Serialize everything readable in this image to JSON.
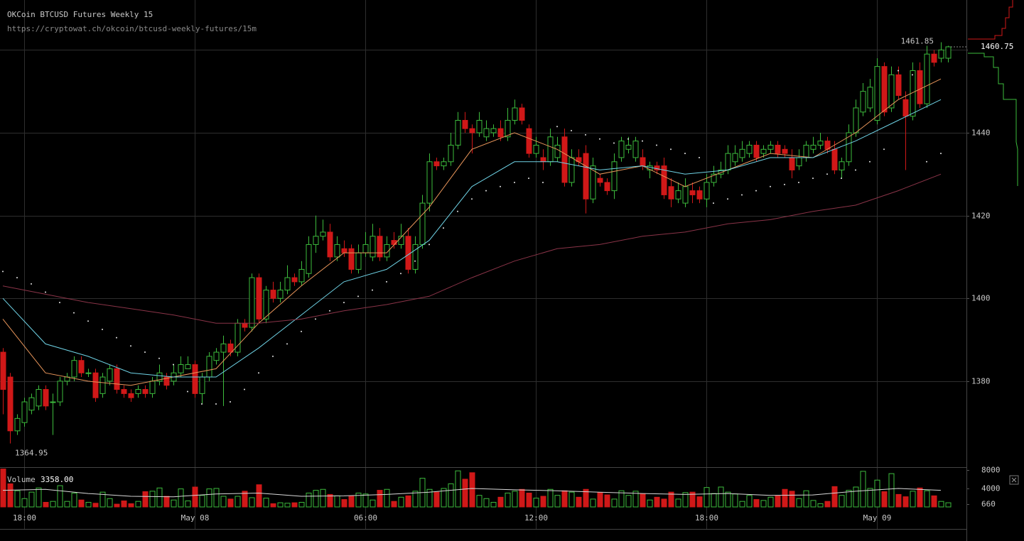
{
  "chart_data": {
    "type": "candlestick",
    "title": "OKCoin BTCUSD Futures Weekly 15",
    "subtitle": "https://cryptowat.ch/okcoin/btcusd-weekly-futures/15m",
    "up_color": "#3dbb3d",
    "down_color": "#d01818",
    "grid": true,
    "xlim": [
      -0.4,
      135.6
    ],
    "xticks": [
      {
        "value": 3,
        "label": "18:00"
      },
      {
        "value": 27,
        "label": "May 08"
      },
      {
        "value": 51,
        "label": "06:00"
      },
      {
        "value": 75,
        "label": "12:00"
      },
      {
        "value": 99,
        "label": "18:00"
      },
      {
        "value": 123,
        "label": "May 09"
      }
    ],
    "ylim": [
      1360.6,
      1472.06
    ],
    "yticks": [
      1380,
      1400,
      1420,
      1440,
      1460
    ],
    "open": [
      1387,
      1381,
      1368,
      1370,
      1373,
      1374,
      1378,
      1375,
      1375,
      1380,
      1381,
      1385,
      1382,
      1382,
      1377,
      1380,
      1383,
      1378,
      1377,
      1377,
      1378,
      1377,
      1380,
      1381,
      1380,
      1382,
      1383,
      1384,
      1377,
      1381,
      1385,
      1387,
      1389,
      1387,
      1394,
      1393,
      1405,
      1395,
      1402,
      1400,
      1402,
      1405,
      1404,
      1406,
      1413,
      1415,
      1416,
      1410,
      1412,
      1412,
      1407,
      1411,
      1410,
      1415,
      1410,
      1414,
      1413,
      1415,
      1407,
      1413,
      1423,
      1433,
      1432,
      1433,
      1437,
      1443,
      1441,
      1440,
      1439,
      1440,
      1441,
      1439,
      1443,
      1446,
      1441,
      1435,
      1434,
      1433,
      1434,
      1439,
      1428,
      1434,
      1435,
      1424,
      1429,
      1428,
      1426,
      1434,
      1436,
      1434,
      1434,
      1431,
      1432,
      1432,
      1427,
      1424,
      1423,
      1426,
      1426,
      1424,
      1428,
      1430,
      1431,
      1433,
      1434,
      1435,
      1437,
      1435,
      1436,
      1437,
      1436,
      1434,
      1432,
      1434,
      1436,
      1437,
      1438,
      1436,
      1431,
      1433,
      1440,
      1445,
      1446,
      1443,
      1456,
      1446,
      1454,
      1448,
      1444,
      1455,
      1447,
      1459,
      1458,
      1458
    ],
    "high": [
      1388,
      1382,
      1372,
      1376,
      1377,
      1379,
      1379,
      1377,
      1381,
      1382,
      1386,
      1386,
      1383,
      1383,
      1382,
      1384,
      1384,
      1379,
      1378,
      1379,
      1379,
      1381,
      1384,
      1382,
      1384,
      1386,
      1386,
      1385,
      1382,
      1387,
      1388,
      1391,
      1390,
      1395,
      1395,
      1406,
      1406,
      1403,
      1404,
      1404,
      1408,
      1406,
      1409,
      1415,
      1420,
      1419,
      1418,
      1415,
      1414,
      1413,
      1413,
      1416,
      1418,
      1417,
      1415,
      1416,
      1418,
      1417,
      1415,
      1425,
      1435,
      1434,
      1434,
      1440,
      1445,
      1445,
      1442,
      1445,
      1443,
      1442,
      1443,
      1446,
      1448,
      1447,
      1442,
      1439,
      1436,
      1441,
      1439,
      1441,
      1436,
      1436,
      1437,
      1434,
      1430,
      1429,
      1435,
      1439,
      1439,
      1439,
      1436,
      1433,
      1433,
      1434,
      1429,
      1428,
      1429,
      1428,
      1427,
      1430,
      1432,
      1433,
      1437,
      1437,
      1438,
      1438,
      1438,
      1437,
      1438,
      1438,
      1437,
      1436,
      1436,
      1438,
      1439,
      1440,
      1439,
      1438,
      1434,
      1442,
      1448,
      1452,
      1453,
      1458,
      1457,
      1456,
      1456,
      1450,
      1457,
      1457,
      1461,
      1460,
      1461.85,
      1461
    ],
    "low": [
      1372,
      1364.95,
      1367,
      1369,
      1372,
      1373,
      1373,
      1367,
      1374,
      1379,
      1380,
      1381,
      1381,
      1375,
      1376,
      1379,
      1377,
      1376,
      1375,
      1376,
      1376,
      1376,
      1379,
      1378,
      1379,
      1381,
      1383,
      1376,
      1374.5,
      1380,
      1384,
      1374,
      1386,
      1386,
      1392,
      1392,
      1394,
      1394,
      1399,
      1399,
      1401,
      1403,
      1403,
      1405,
      1411,
      1414,
      1409,
      1409,
      1410,
      1406,
      1406,
      1410,
      1409,
      1409,
      1409,
      1412,
      1412,
      1406,
      1406,
      1412,
      1421,
      1431,
      1431,
      1432,
      1436,
      1440,
      1435,
      1439,
      1438,
      1439,
      1438,
      1438,
      1442,
      1442,
      1434,
      1434,
      1431,
      1432,
      1433,
      1427,
      1427,
      1432,
      1420.5,
      1423,
      1427,
      1425,
      1424,
      1433,
      1435,
      1433,
      1431,
      1429,
      1430,
      1424,
      1422,
      1423,
      1422,
      1423,
      1423,
      1422,
      1427,
      1429,
      1430,
      1432,
      1433,
      1434,
      1433,
      1434,
      1435,
      1434,
      1434,
      1429,
      1431,
      1433,
      1435,
      1436,
      1435,
      1430,
      1429,
      1432,
      1439,
      1444,
      1445,
      1442,
      1444,
      1445,
      1448,
      1431,
      1443,
      1446,
      1446,
      1456,
      1457,
      1457
    ],
    "close": [
      1378,
      1368,
      1371,
      1375,
      1376,
      1378,
      1374,
      1375,
      1380,
      1381,
      1385,
      1382,
      1382,
      1376,
      1381,
      1383,
      1378,
      1377,
      1376,
      1378,
      1377,
      1380,
      1382,
      1379,
      1382,
      1384,
      1384,
      1377,
      1381,
      1386,
      1387,
      1389,
      1387,
      1394,
      1393,
      1405,
      1395,
      1402,
      1400,
      1402,
      1405,
      1404,
      1407,
      1413,
      1415,
      1416,
      1410,
      1413,
      1411,
      1407,
      1411,
      1413,
      1415,
      1410,
      1413,
      1413,
      1415,
      1407,
      1413,
      1423,
      1433,
      1432,
      1433,
      1437,
      1443,
      1441,
      1440,
      1443,
      1441,
      1441,
      1439,
      1443,
      1446,
      1443,
      1435,
      1437,
      1433,
      1439,
      1437,
      1428,
      1434,
      1433,
      1424,
      1432,
      1428,
      1426,
      1433,
      1438,
      1437,
      1438,
      1432,
      1432,
      1431,
      1425,
      1424,
      1426,
      1427,
      1425,
      1424,
      1428,
      1430,
      1431,
      1435,
      1435,
      1436,
      1437,
      1434,
      1436,
      1437,
      1435,
      1435,
      1431,
      1434,
      1437,
      1437,
      1438,
      1436,
      1431,
      1433,
      1440,
      1446,
      1450,
      1451,
      1456,
      1445,
      1454,
      1449,
      1444,
      1455,
      1447,
      1459,
      1457,
      1460,
      1460.75
    ],
    "lines": [
      {
        "color": "#e8955a",
        "x": [
          0,
          6,
          12,
          18,
          24,
          30,
          36,
          42,
          48,
          54,
          60,
          66,
          72,
          78,
          84,
          90,
          96,
          102,
          108,
          114,
          120,
          126,
          132
        ],
        "values": [
          1395,
          1382,
          1380,
          1379,
          1381,
          1383,
          1394,
          1403,
          1411,
          1411,
          1422,
          1436,
          1440,
          1436,
          1430,
          1432,
          1427,
          1431,
          1435,
          1434,
          1440,
          1448,
          1453
        ]
      },
      {
        "color": "#6fd3e6",
        "x": [
          0,
          6,
          12,
          18,
          24,
          30,
          36,
          42,
          48,
          54,
          60,
          66,
          72,
          78,
          84,
          90,
          96,
          102,
          108,
          114,
          120,
          126,
          132
        ],
        "values": [
          1400,
          1389,
          1386,
          1382,
          1381,
          1381,
          1388,
          1396,
          1404,
          1407,
          1414,
          1427,
          1433,
          1433,
          1431,
          1432,
          1430,
          1431,
          1434,
          1434,
          1438,
          1443,
          1448
        ]
      },
      {
        "color": "#8a3448",
        "x": [
          0,
          6,
          12,
          18,
          24,
          30,
          36,
          42,
          48,
          54,
          60,
          66,
          72,
          78,
          84,
          90,
          96,
          102,
          108,
          114,
          120,
          126,
          132
        ],
        "values": [
          1403,
          1401,
          1399,
          1397.5,
          1396,
          1394,
          1394,
          1395,
          1397,
          1398.5,
          1400.5,
          1405,
          1409,
          1412,
          1413,
          1415,
          1416,
          1418,
          1419,
          1421,
          1422.5,
          1426,
          1430
        ]
      }
    ],
    "sar": {
      "color": "#e6e6e6",
      "x": [
        0,
        2,
        4,
        6,
        8,
        10,
        12,
        14,
        16,
        18,
        20,
        22,
        24,
        26,
        28,
        30,
        32,
        34,
        36,
        38,
        40,
        42,
        44,
        46,
        48,
        50,
        52,
        54,
        56,
        58,
        60,
        62,
        64,
        66,
        68,
        70,
        72,
        74,
        76,
        78,
        80,
        82,
        84,
        86,
        88,
        90,
        92,
        94,
        96,
        98,
        100,
        102,
        104,
        106,
        108,
        110,
        112,
        114,
        116,
        118,
        120,
        122,
        124,
        126,
        128,
        130,
        132
      ],
      "values": [
        1406.5,
        1405,
        1403.5,
        1401.5,
        1399,
        1396.5,
        1394.5,
        1392.5,
        1390.5,
        1388.5,
        1387,
        1385.5,
        1384,
        1377.5,
        1374.5,
        1374.5,
        1375,
        1378,
        1382,
        1386,
        1389,
        1392,
        1395,
        1397,
        1399,
        1400.5,
        1402,
        1404,
        1406,
        1409,
        1413,
        1417,
        1421,
        1424,
        1426,
        1427,
        1428,
        1429,
        1428,
        1441.5,
        1440.5,
        1439.5,
        1438.5,
        1437.5,
        1438.5,
        1438,
        1437,
        1436,
        1435,
        1434,
        1423,
        1424,
        1425,
        1426,
        1427,
        1427.5,
        1428,
        1429,
        1430,
        1429,
        1431,
        1433,
        1436,
        1455,
        1454,
        1433,
        1435
      ]
    },
    "volume": {
      "label": "Volume",
      "readout": {
        "value": 3358,
        "label": "3358.00"
      },
      "ylim": [
        0,
        8600
      ],
      "yticks": [
        660,
        4000,
        8000
      ],
      "values": [
        8200,
        5000,
        3500,
        1800,
        3200,
        4100,
        1000,
        1200,
        4600,
        1200,
        3000,
        1500,
        1000,
        800,
        3200,
        1800,
        600,
        1300,
        700,
        1200,
        3300,
        3400,
        4100,
        2300,
        1500,
        3900,
        1300,
        4300,
        2500,
        3900,
        4000,
        2300,
        1700,
        2300,
        3400,
        2000,
        4800,
        1900,
        700,
        900,
        800,
        900,
        1000,
        3000,
        3600,
        3800,
        2700,
        2400,
        1600,
        2300,
        3000,
        2800,
        1500,
        3600,
        3800,
        1200,
        2100,
        2400,
        3400,
        6200,
        3800,
        3200,
        4000,
        5000,
        7800,
        6000,
        7400,
        2500,
        1800,
        1000,
        2100,
        3000,
        3400,
        3800,
        3000,
        1900,
        2300,
        3800,
        2500,
        3500,
        3200,
        2100,
        3800,
        1700,
        3100,
        2600,
        1700,
        3500,
        2500,
        3400,
        2800,
        1500,
        2100,
        1700,
        3200,
        1700,
        3100,
        3200,
        2200,
        4200,
        2900,
        4300,
        3200,
        2800,
        1200,
        2500,
        1600,
        1400,
        2100,
        2400,
        3800,
        3400,
        1800,
        3500,
        1400,
        700,
        1200,
        4400,
        2500,
        3600,
        4300,
        7700,
        4000,
        5800,
        3300,
        7200,
        2700,
        2200,
        3400,
        4100,
        3500,
        2400,
        1200,
        900
      ],
      "ma": {
        "color": "#d8d8d8",
        "x": [
          0,
          6,
          12,
          18,
          24,
          30,
          36,
          42,
          48,
          54,
          60,
          66,
          72,
          78,
          84,
          90,
          96,
          102,
          108,
          114,
          120,
          126,
          132
        ],
        "values": [
          3600,
          3800,
          2900,
          2300,
          2200,
          2800,
          3000,
          2300,
          2400,
          2700,
          3200,
          4000,
          3700,
          3500,
          3200,
          2900,
          2700,
          2900,
          2500,
          2600,
          3400,
          4000,
          3600
        ]
      }
    }
  }
}
